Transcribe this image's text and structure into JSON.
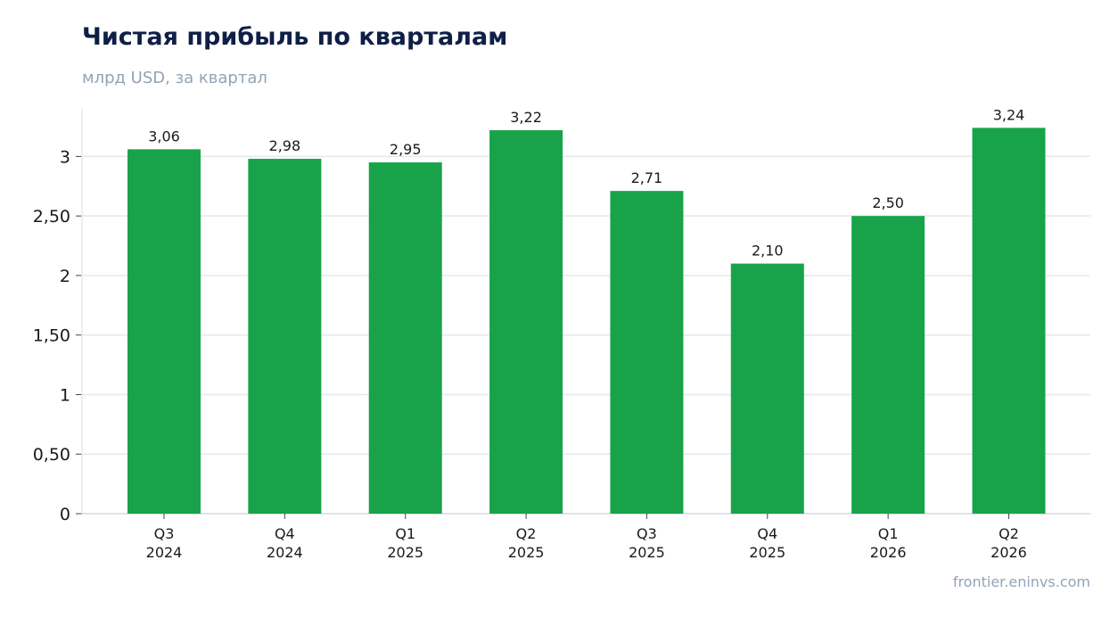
{
  "chart_data": {
    "type": "bar",
    "title": "Чистая прибыль по кварталам",
    "subtitle": "млрд USD, за квартал",
    "categories": [
      [
        "Q3",
        "2024"
      ],
      [
        "Q4",
        "2024"
      ],
      [
        "Q1",
        "2025"
      ],
      [
        "Q2",
        "2025"
      ],
      [
        "Q3",
        "2025"
      ],
      [
        "Q4",
        "2025"
      ],
      [
        "Q1",
        "2026"
      ],
      [
        "Q2",
        "2026"
      ]
    ],
    "values": [
      3.06,
      2.98,
      2.95,
      3.22,
      2.71,
      2.1,
      2.5,
      3.24
    ],
    "value_labels": [
      "3,06",
      "2,98",
      "2,95",
      "3,22",
      "2,71",
      "2,10",
      "2,50",
      "3,24"
    ],
    "y_ticks": [
      0,
      0.5,
      1,
      1.5,
      2,
      2.5,
      3
    ],
    "y_tick_labels": [
      "0",
      "0,50",
      "1",
      "1,50",
      "2",
      "2,50",
      "3"
    ],
    "ylim": [
      0,
      3.4
    ],
    "grid": true,
    "bar_color": "#18a34a",
    "source": "frontier.eninvs.com"
  }
}
